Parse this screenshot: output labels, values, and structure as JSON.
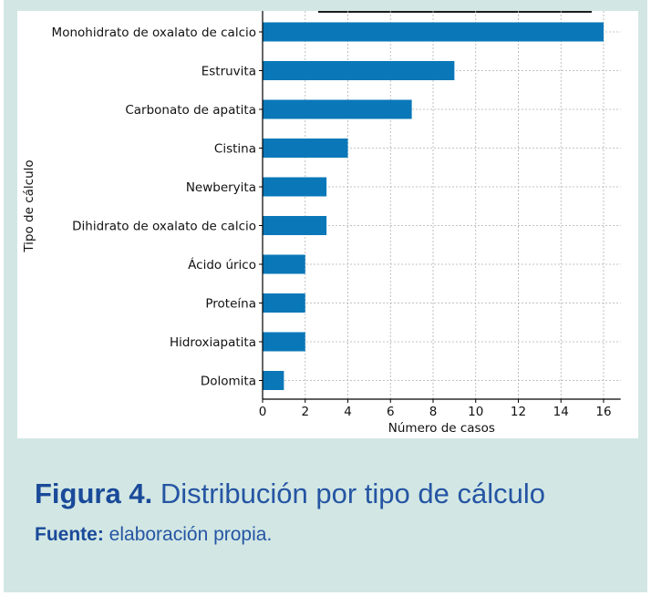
{
  "figure": {
    "number_label": "Figura 4.",
    "title": "Distribución por tipo de cálculo",
    "source_label": "Fuente:",
    "source_text": "elaboración propia."
  },
  "colors": {
    "panel_bg": "#d2e7e4",
    "bar": "#0a78b8",
    "caption": "#1d4f9c",
    "grid": "#b0b0b0"
  },
  "chart_data": {
    "type": "bar",
    "orientation": "horizontal",
    "title": "",
    "xlabel": "Número de casos",
    "ylabel": "Tipo de cálculo",
    "categories": [
      "Monohidrato de oxalato de calcio",
      "Estruvita",
      "Carbonato de apatita",
      "Cistina",
      "Newberyita",
      "Dihidrato de oxalato de calcio",
      "Ácido úrico",
      "Proteína",
      "Hidroxiapatita",
      "Dolomita"
    ],
    "values": [
      16,
      9,
      7,
      4,
      3,
      3,
      2,
      2,
      2,
      1
    ],
    "xlim": [
      0,
      16.8
    ],
    "xticks": [
      0,
      2,
      4,
      6,
      8,
      10,
      12,
      14,
      16
    ],
    "grid": true,
    "grid_style": "dashed",
    "legend": null
  }
}
